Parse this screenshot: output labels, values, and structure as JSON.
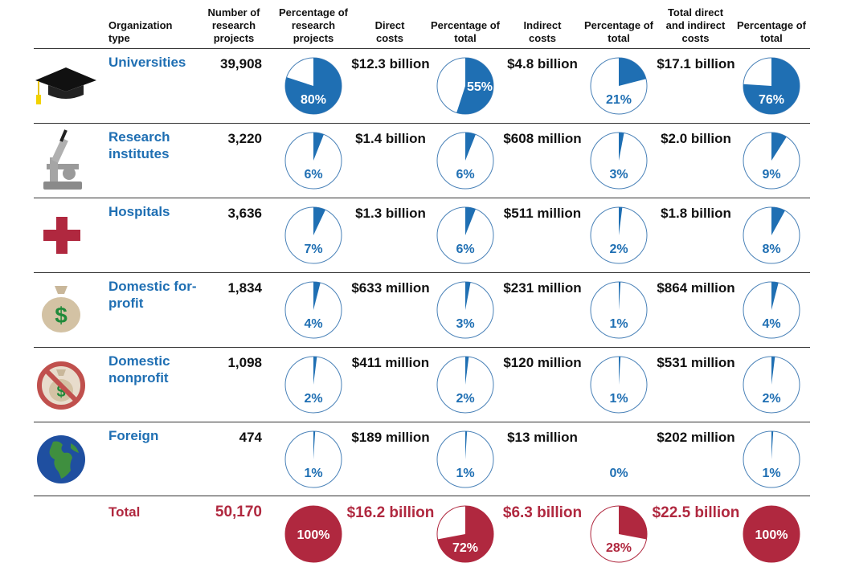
{
  "headers": {
    "org": "Organization type",
    "projects": "Number of research projects",
    "pct_projects": "Percentage of research projects",
    "direct": "Direct costs",
    "pct_direct": "Percentage of total",
    "indirect": "Indirect costs",
    "pct_indirect": "Percentage of total",
    "total": "Total direct and indirect costs",
    "pct_total": "Percentage of total"
  },
  "colors": {
    "blue": "#1f6fb3",
    "red": "#b0283f",
    "outline": "#4a82b8"
  },
  "chart_data": {
    "type": "table",
    "rows": [
      {
        "org": "Universities",
        "icon": "graduation-cap-icon",
        "projects": "39,908",
        "pct_projects": 80,
        "direct": "$12.3 billion",
        "pct_direct": 55,
        "indirect": "$4.8 billion",
        "pct_indirect": 21,
        "total": "$17.1 billion",
        "pct_total": 76
      },
      {
        "org": "Research institutes",
        "icon": "microscope-icon",
        "projects": "3,220",
        "pct_projects": 6,
        "direct": "$1.4 billion",
        "pct_direct": 6,
        "indirect": "$608 million",
        "pct_indirect": 3,
        "total": "$2.0 billion",
        "pct_total": 9
      },
      {
        "org": "Hospitals",
        "icon": "red-cross-icon",
        "projects": "3,636",
        "pct_projects": 7,
        "direct": "$1.3 billion",
        "pct_direct": 6,
        "indirect": "$511 million",
        "pct_indirect": 2,
        "total": "$1.8 billion",
        "pct_total": 8
      },
      {
        "org": "Domestic for-profit",
        "icon": "money-bag-icon",
        "projects": "1,834",
        "pct_projects": 4,
        "direct": "$633 million",
        "pct_direct": 3,
        "indirect": "$231 million",
        "pct_indirect": 1,
        "total": "$864 million",
        "pct_total": 4
      },
      {
        "org": "Domestic nonprofit",
        "icon": "no-money-icon",
        "projects": "1,098",
        "pct_projects": 2,
        "direct": "$411 million",
        "pct_direct": 2,
        "indirect": "$120 million",
        "pct_indirect": 1,
        "total": "$531 million",
        "pct_total": 2
      },
      {
        "org": "Foreign",
        "icon": "globe-icon",
        "projects": "474",
        "pct_projects": 1,
        "direct": "$189 million",
        "pct_direct": 1,
        "indirect": "$13 million",
        "pct_indirect": 0,
        "total": "$202 million",
        "pct_total": 1
      }
    ],
    "total_row": {
      "org": "Total",
      "projects": "50,170",
      "pct_projects": 100,
      "direct": "$16.2 billion",
      "pct_direct": 72,
      "indirect": "$6.3 billion",
      "pct_indirect": 28,
      "total": "$22.5 billion",
      "pct_total": 100
    }
  }
}
